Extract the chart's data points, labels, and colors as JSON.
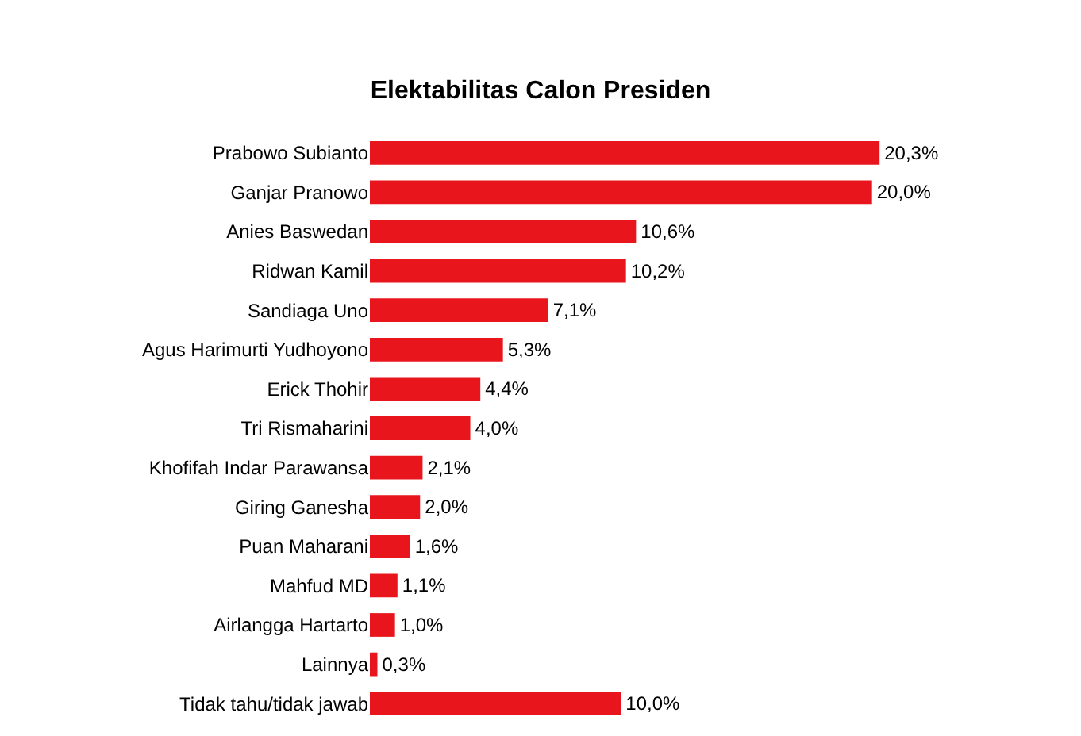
{
  "chart_data": {
    "type": "bar",
    "orientation": "horizontal",
    "title": "Elektabilitas Calon Presiden",
    "categories": [
      "Prabowo Subianto",
      "Ganjar Pranowo",
      "Anies Baswedan",
      "Ridwan Kamil",
      "Sandiaga Uno",
      "Agus Harimurti Yudhoyono",
      "Erick Thohir",
      "Tri Rismaharini",
      "Khofifah Indar Parawansa",
      "Giring Ganesha",
      "Puan Maharani",
      "Mahfud MD",
      "Airlangga Hartarto",
      "Lainnya",
      "Tidak tahu/tidak jawab"
    ],
    "values": [
      20.3,
      20.0,
      10.6,
      10.2,
      7.1,
      5.3,
      4.4,
      4.0,
      2.1,
      2.0,
      1.6,
      1.1,
      1.0,
      0.3,
      10.0
    ],
    "value_labels": [
      "20,3%",
      "20,0%",
      "10,6%",
      "10,2%",
      "7,1%",
      "5,3%",
      "4,4%",
      "4,0%",
      "2,1%",
      "2,0%",
      "1,6%",
      "1,1%",
      "1,0%",
      "0,3%",
      "10,0%"
    ],
    "color": "#e8161c"
  }
}
